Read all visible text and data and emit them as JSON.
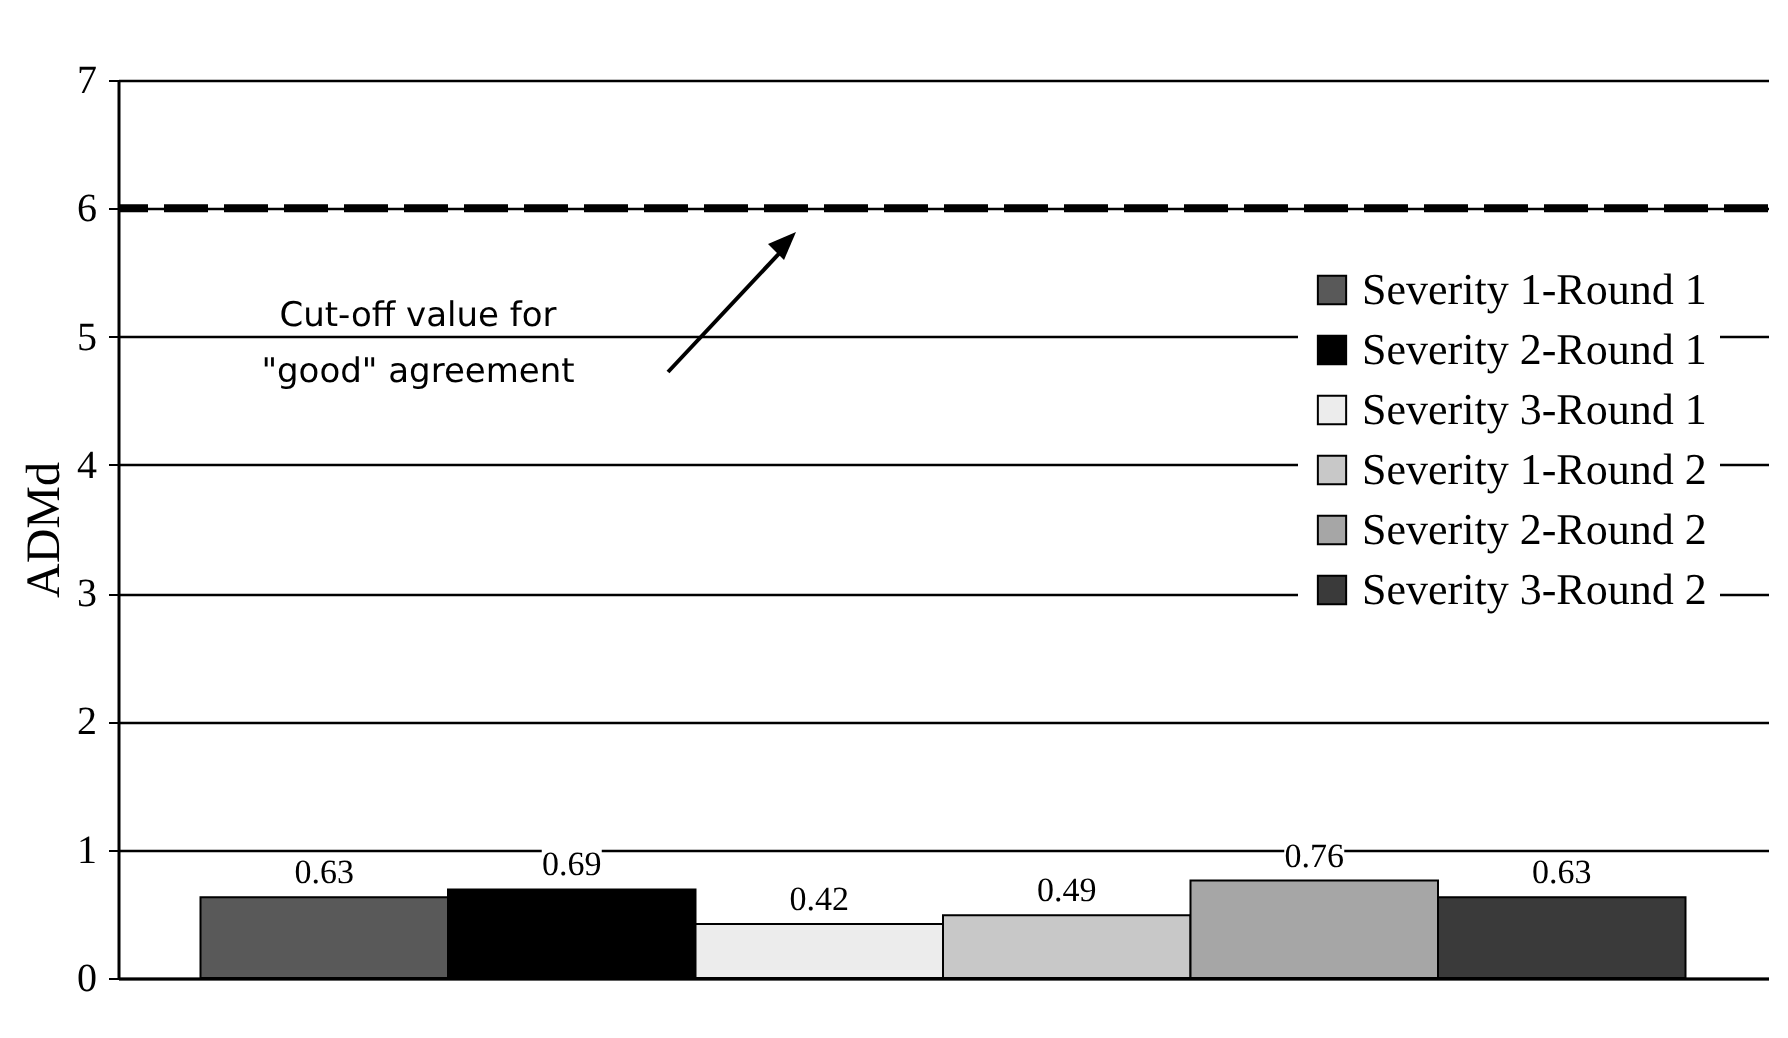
{
  "chart_data": {
    "type": "bar",
    "categories": [
      null
    ],
    "series": [
      {
        "name": "Severity 1-Round 1",
        "color": "#595959",
        "values": [
          0.63
        ]
      },
      {
        "name": "Severity 2-Round 1",
        "color": "#000000",
        "values": [
          0.69
        ]
      },
      {
        "name": "Severity 3-Round 1",
        "color": "#ececec",
        "values": [
          0.42
        ]
      },
      {
        "name": "Severity 1-Round 2",
        "color": "#c8c8c8",
        "values": [
          0.49
        ]
      },
      {
        "name": "Severity 2-Round 2",
        "color": "#a6a6a6",
        "values": [
          0.76
        ]
      },
      {
        "name": "Severity 3-Round 2",
        "color": "#3a3a3a",
        "values": [
          0.63
        ]
      }
    ],
    "ylabel": "ADMd",
    "ylim": [
      0,
      7
    ],
    "yticks": [
      0,
      1,
      2,
      3,
      4,
      5,
      6,
      7
    ],
    "grid": "y",
    "legend": "top right",
    "data_labels": true,
    "tick_labels": "y",
    "ref_lines": [
      {
        "axis": "y",
        "value": 6,
        "color": "#000000",
        "line_style": "dashed"
      }
    ],
    "annotations": [
      "Cut-off value for\n\"good\" agreement"
    ]
  }
}
